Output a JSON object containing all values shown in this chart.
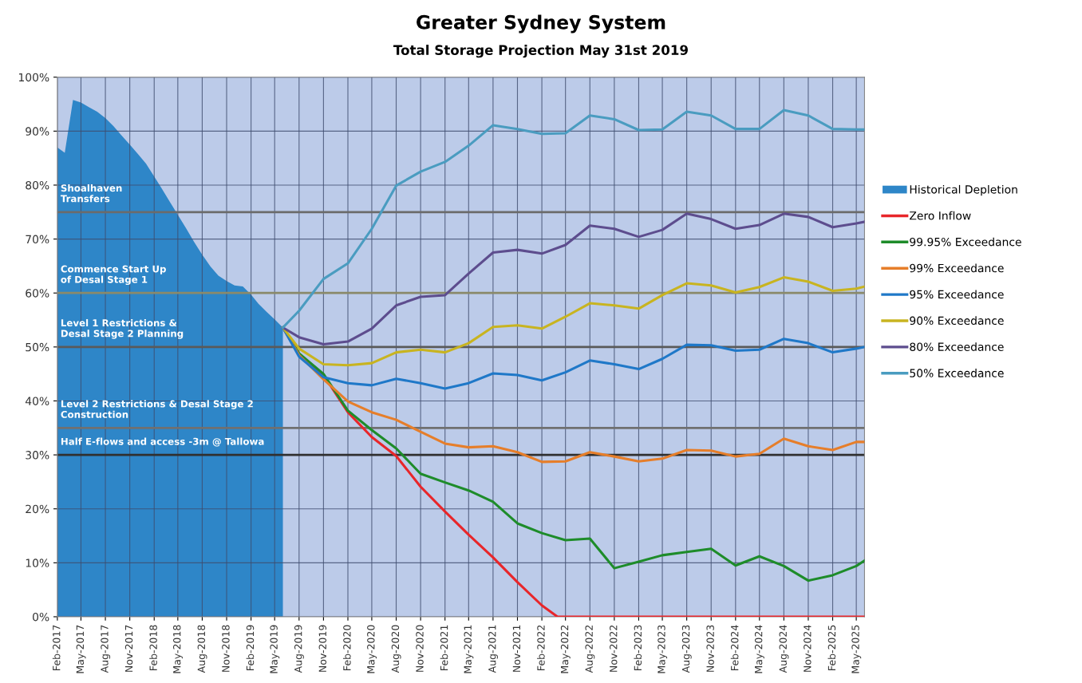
{
  "chart_data": {
    "type": "line",
    "title": "Greater Sydney System",
    "subtitle": "Total Storage Projection May 31st 2019",
    "x": [
      "2019-06",
      "2019-08",
      "2019-11",
      "2020-02",
      "2020-05",
      "2020-08",
      "2020-11",
      "2021-02",
      "2021-05",
      "2021-08",
      "2021-11",
      "2022-02",
      "2022-05",
      "2022-08",
      "2022-11",
      "2023-02",
      "2023-05",
      "2023-08",
      "2023-11",
      "2024-02",
      "2024-05",
      "2024-08",
      "2024-11",
      "2025-02",
      "2025-05",
      "2025-06"
    ],
    "series": [
      {
        "name": "Historical Depletion",
        "type": "area",
        "color": "#2e86c8",
        "x": [
          "2017-02",
          "2017-03",
          "2017-04",
          "2017-05",
          "2017-06",
          "2017-07",
          "2017-08",
          "2017-09",
          "2017-10",
          "2017-11",
          "2017-12",
          "2018-01",
          "2018-02",
          "2018-03",
          "2018-04",
          "2018-05",
          "2018-06",
          "2018-07",
          "2018-08",
          "2018-09",
          "2018-10",
          "2018-11",
          "2018-12",
          "2019-01",
          "2019-02",
          "2019-03",
          "2019-04",
          "2019-05",
          "2019-06"
        ],
        "values": [
          87.0,
          86.0,
          95.8,
          95.3,
          94.4,
          93.6,
          92.4,
          90.9,
          89.2,
          87.5,
          85.8,
          84.0,
          81.6,
          79.4,
          76.9,
          74.5,
          72.0,
          69.5,
          67.1,
          64.9,
          63.2,
          62.2,
          61.4,
          61.2,
          59.7,
          58.0,
          56.5,
          55.1,
          53.6
        ]
      },
      {
        "name": "Zero Inflow",
        "color": "#e8262a",
        "x": [
          "2019-06",
          "2019-08",
          "2019-11",
          "2020-02",
          "2020-05",
          "2020-08",
          "2020-11",
          "2021-02",
          "2021-05",
          "2021-08",
          "2021-11",
          "2022-02",
          "2022-04",
          "2022-05",
          "2022-08",
          "2022-11",
          "2023-02",
          "2023-05",
          "2023-08",
          "2023-11",
          "2024-02",
          "2024-05",
          "2024-08",
          "2024-11",
          "2025-02",
          "2025-05",
          "2025-06"
        ],
        "values": [
          53.6,
          48.6,
          44.8,
          37.9,
          33.3,
          29.8,
          24.1,
          19.5,
          15.2,
          11.0,
          6.4,
          2.1,
          0,
          0,
          0,
          0,
          0,
          0,
          0,
          0,
          0,
          0,
          0,
          0,
          0,
          0,
          0
        ]
      },
      {
        "name": "99.95% Exceedance",
        "color": "#1e8c2a",
        "values": [
          53.6,
          48.8,
          45.0,
          38.2,
          34.6,
          31.2,
          26.5,
          24.9,
          23.4,
          21.3,
          17.3,
          15.5,
          14.2,
          14.5,
          9.0,
          10.2,
          11.4,
          12.0,
          12.6,
          9.5,
          11.2,
          9.4,
          6.7,
          7.7,
          9.4,
          10.4
        ]
      },
      {
        "name": "99% Exceedance",
        "color": "#e67e2a",
        "values": [
          53.6,
          48.5,
          44.0,
          39.9,
          37.9,
          36.5,
          34.3,
          32.1,
          31.4,
          31.6,
          30.5,
          28.7,
          28.8,
          30.5,
          29.7,
          28.8,
          29.3,
          30.9,
          30.8,
          29.7,
          30.2,
          33.0,
          31.6,
          30.9,
          32.4,
          32.4
        ]
      },
      {
        "name": "95% Exceedance",
        "color": "#1f78c8",
        "values": [
          53.6,
          48.2,
          44.4,
          43.3,
          42.9,
          44.1,
          43.3,
          42.3,
          43.3,
          45.1,
          44.8,
          43.8,
          45.3,
          47.5,
          46.8,
          45.9,
          47.8,
          50.4,
          50.3,
          49.3,
          49.5,
          51.5,
          50.7,
          49.0,
          49.7,
          50.0
        ]
      },
      {
        "name": "90% Exceedance",
        "color": "#c8b420",
        "values": [
          53.6,
          49.7,
          46.8,
          46.6,
          47.0,
          49.0,
          49.5,
          49.0,
          50.7,
          53.7,
          54.0,
          53.4,
          55.6,
          58.1,
          57.7,
          57.1,
          59.6,
          61.8,
          61.4,
          60.1,
          61.1,
          62.9,
          62.1,
          60.4,
          60.8,
          61.2
        ]
      },
      {
        "name": "80% Exceedance",
        "color": "#5d4d8e",
        "values": [
          53.6,
          51.8,
          50.5,
          51.0,
          53.4,
          57.7,
          59.3,
          59.6,
          63.6,
          67.5,
          68.0,
          67.3,
          68.9,
          72.5,
          71.9,
          70.4,
          71.7,
          74.7,
          73.7,
          71.9,
          72.6,
          74.7,
          74.1,
          72.2,
          72.9,
          73.2
        ]
      },
      {
        "name": "50% Exceedance",
        "color": "#4a9cc0",
        "values": [
          53.6,
          56.7,
          62.6,
          65.5,
          71.9,
          79.9,
          82.5,
          84.3,
          87.3,
          91.1,
          90.4,
          89.5,
          89.6,
          92.9,
          92.2,
          90.2,
          90.3,
          93.6,
          92.9,
          90.4,
          90.4,
          93.9,
          92.9,
          90.4,
          90.3,
          90.3
        ]
      }
    ],
    "xlim": [
      "2017-02",
      "2025-06"
    ],
    "xticks": [
      {
        "value": "2017-02",
        "label": "Feb-2017"
      },
      {
        "value": "2017-05",
        "label": "May-2017"
      },
      {
        "value": "2017-08",
        "label": "Aug-2017"
      },
      {
        "value": "2017-11",
        "label": "Nov-2017"
      },
      {
        "value": "2018-02",
        "label": "Feb-2018"
      },
      {
        "value": "2018-05",
        "label": "May-2018"
      },
      {
        "value": "2018-08",
        "label": "Aug-2018"
      },
      {
        "value": "2018-11",
        "label": "Nov-2018"
      },
      {
        "value": "2019-02",
        "label": "Feb-2019"
      },
      {
        "value": "2019-05",
        "label": "May-2019"
      },
      {
        "value": "2019-08",
        "label": "Aug-2019"
      },
      {
        "value": "2019-11",
        "label": "Nov-2019"
      },
      {
        "value": "2020-02",
        "label": "Feb-2020"
      },
      {
        "value": "2020-05",
        "label": "May-2020"
      },
      {
        "value": "2020-08",
        "label": "Aug-2020"
      },
      {
        "value": "2020-11",
        "label": "Nov-2020"
      },
      {
        "value": "2021-02",
        "label": "Feb-2021"
      },
      {
        "value": "2021-05",
        "label": "May-2021"
      },
      {
        "value": "2021-08",
        "label": "Aug-2021"
      },
      {
        "value": "2021-11",
        "label": "Nov-2021"
      },
      {
        "value": "2022-02",
        "label": "Feb-2022"
      },
      {
        "value": "2022-05",
        "label": "May-2022"
      },
      {
        "value": "2022-08",
        "label": "Aug-2022"
      },
      {
        "value": "2022-11",
        "label": "Nov-2022"
      },
      {
        "value": "2023-02",
        "label": "Feb-2023"
      },
      {
        "value": "2023-05",
        "label": "May-2023"
      },
      {
        "value": "2023-08",
        "label": "Aug-2023"
      },
      {
        "value": "2023-11",
        "label": "Nov-2023"
      },
      {
        "value": "2024-02",
        "label": "Feb-2024"
      },
      {
        "value": "2024-05",
        "label": "May-2024"
      },
      {
        "value": "2024-08",
        "label": "Aug-2024"
      },
      {
        "value": "2024-11",
        "label": "Nov-2024"
      },
      {
        "value": "2025-02",
        "label": "Feb-2025"
      },
      {
        "value": "2025-05",
        "label": "May-2025"
      }
    ],
    "ylim": [
      0,
      100
    ],
    "yticks": [
      {
        "value": 0,
        "label": "0%"
      },
      {
        "value": 10,
        "label": "10%"
      },
      {
        "value": 20,
        "label": "20%"
      },
      {
        "value": 30,
        "label": "30%"
      },
      {
        "value": 40,
        "label": "40%"
      },
      {
        "value": 50,
        "label": "50%"
      },
      {
        "value": 60,
        "label": "60%"
      },
      {
        "value": 70,
        "label": "70%"
      },
      {
        "value": 80,
        "label": "80%"
      },
      {
        "value": 90,
        "label": "90%"
      },
      {
        "value": 100,
        "label": "100%"
      }
    ],
    "ref_lines": [
      {
        "axis": "y",
        "value": 75,
        "label": "Shoalhaven\nTransfers",
        "color": "#6b6b6b"
      },
      {
        "axis": "y",
        "value": 60,
        "label": "Commence Start Up\nof Desal Stage 1",
        "color": "#8a8a6a"
      },
      {
        "axis": "y",
        "value": 50,
        "label": "Level 1 Restrictions &\nDesal Stage 2 Planning",
        "color": "#5a5a5a"
      },
      {
        "axis": "y",
        "value": 35,
        "label": "Level 2 Restrictions & Desal Stage 2\nConstruction",
        "color": "#707070"
      },
      {
        "axis": "y",
        "value": 30,
        "label": "Half E-flows and access -3m @ Tallowa",
        "color": "#303030"
      }
    ],
    "grid": true,
    "legend": "right"
  }
}
